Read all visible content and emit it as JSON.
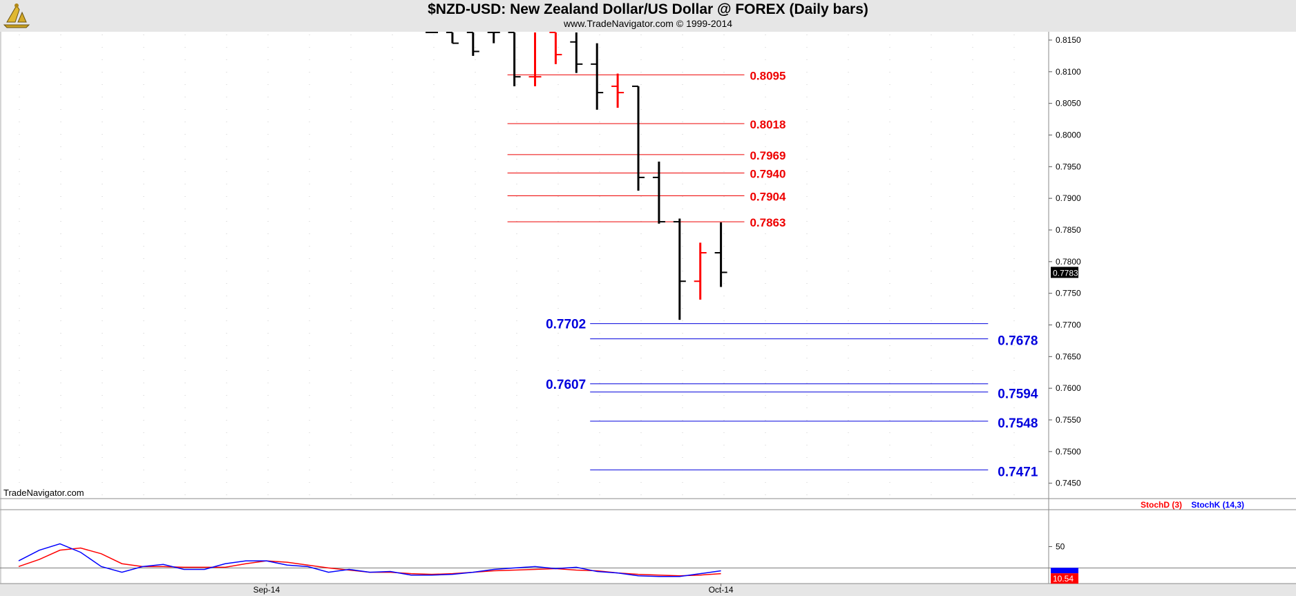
{
  "header": {
    "title": "$NZD-USD:  New Zealand Dollar/US Dollar @ FOREX  (Daily bars)",
    "subtitle": "www.TradeNavigator.com © 1999-2014",
    "watermark": "TradeNavigator.com"
  },
  "colors": {
    "up_bar": "#000000",
    "down_bar": "#ff0000",
    "resistance": "#ee0000",
    "support": "#0000dd",
    "stoch_d": "#ff0000",
    "stoch_k": "#0000ff"
  },
  "chart_data": [
    {
      "type": "ohlc",
      "ylim": [
        0.743,
        0.8162
      ],
      "y_ticks": [
        "0.8150",
        "0.8100",
        "0.8050",
        "0.8000",
        "0.7950",
        "0.7900",
        "0.7850",
        "0.7800",
        "0.7750",
        "0.7700",
        "0.7650",
        "0.7600",
        "0.7550",
        "0.7500",
        "0.7450"
      ],
      "last_price": "0.7783",
      "grid": true,
      "bars": [
        {
          "x": 20,
          "o": 0.8162,
          "h": 0.8162,
          "l": 0.8162,
          "c": 0.8162,
          "color": "black"
        },
        {
          "x": 21,
          "o": 0.8162,
          "h": 0.8162,
          "l": 0.8145,
          "c": 0.8145,
          "color": "black"
        },
        {
          "x": 22,
          "o": 0.8162,
          "h": 0.8162,
          "l": 0.8125,
          "c": 0.8132,
          "color": "black"
        },
        {
          "x": 23,
          "o": 0.8162,
          "h": 0.8162,
          "l": 0.8145,
          "c": 0.8162,
          "color": "black"
        },
        {
          "x": 24,
          "o": 0.8162,
          "h": 0.8162,
          "l": 0.8077,
          "c": 0.8092,
          "color": "black"
        },
        {
          "x": 25,
          "o": 0.8092,
          "h": 0.8162,
          "l": 0.8077,
          "c": 0.8092,
          "color": "red"
        },
        {
          "x": 26,
          "o": 0.8162,
          "h": 0.8162,
          "l": 0.8112,
          "c": 0.8127,
          "color": "red"
        },
        {
          "x": 27,
          "o": 0.8147,
          "h": 0.8162,
          "l": 0.8098,
          "c": 0.8112,
          "color": "black"
        },
        {
          "x": 28,
          "o": 0.8112,
          "h": 0.8145,
          "l": 0.804,
          "c": 0.8067,
          "color": "black"
        },
        {
          "x": 29,
          "o": 0.8077,
          "h": 0.8097,
          "l": 0.8043,
          "c": 0.8067,
          "color": "red"
        },
        {
          "x": 30,
          "o": 0.8077,
          "h": 0.8077,
          "l": 0.7912,
          "c": 0.7933,
          "color": "black"
        },
        {
          "x": 31,
          "o": 0.7933,
          "h": 0.7958,
          "l": 0.786,
          "c": 0.7863,
          "color": "black"
        },
        {
          "x": 32,
          "o": 0.7863,
          "h": 0.7868,
          "l": 0.7708,
          "c": 0.7769,
          "color": "black"
        },
        {
          "x": 33,
          "o": 0.7769,
          "h": 0.783,
          "l": 0.774,
          "c": 0.7814,
          "color": "red"
        },
        {
          "x": 34,
          "o": 0.7814,
          "h": 0.7862,
          "l": 0.776,
          "c": 0.7783,
          "color": "black"
        }
      ],
      "levels": [
        {
          "value": 0.8095,
          "label": "0.8095",
          "color": "red",
          "from_x": 24,
          "to_x": 35.2,
          "label_side": "right"
        },
        {
          "value": 0.8018,
          "label": "0.8018",
          "color": "red",
          "from_x": 24,
          "to_x": 35.2,
          "label_side": "right"
        },
        {
          "value": 0.7969,
          "label": "0.7969",
          "color": "red",
          "from_x": 24,
          "to_x": 35.2,
          "label_side": "right"
        },
        {
          "value": 0.794,
          "label": "0.7940",
          "color": "red",
          "from_x": 24,
          "to_x": 35.2,
          "label_side": "right"
        },
        {
          "value": 0.7904,
          "label": "0.7904",
          "color": "red",
          "from_x": 24,
          "to_x": 35.2,
          "label_side": "right"
        },
        {
          "value": 0.7863,
          "label": "0.7863",
          "color": "red",
          "from_x": 24,
          "to_x": 35.2,
          "label_side": "right"
        },
        {
          "value": 0.7702,
          "label": "0.7702",
          "color": "blue",
          "from_x": 28,
          "to_x": 47,
          "label_side": "left"
        },
        {
          "value": 0.7678,
          "label": "0.7678",
          "color": "blue",
          "from_x": 28,
          "to_x": 47,
          "label_side": "right"
        },
        {
          "value": 0.7607,
          "label": "0.7607",
          "color": "blue",
          "from_x": 28,
          "to_x": 47,
          "label_side": "left"
        },
        {
          "value": 0.7594,
          "label": "0.7594",
          "color": "blue",
          "from_x": 28,
          "to_x": 47,
          "label_side": "right"
        },
        {
          "value": 0.7548,
          "label": "0.7548",
          "color": "blue",
          "from_x": 28,
          "to_x": 47,
          "label_side": "right"
        },
        {
          "value": 0.7471,
          "label": "0.7471",
          "color": "blue",
          "from_x": 28,
          "to_x": 47,
          "label_side": "right"
        }
      ]
    },
    {
      "type": "line",
      "legend": [
        "StochD (3)",
        "StochK (14,3)"
      ],
      "ylim": [
        0,
        100
      ],
      "y_ticks": [
        "50"
      ],
      "reference_line": 20,
      "last_value": "10.54",
      "x_tick_labels": [
        {
          "x": 12,
          "label": "Sep-14"
        },
        {
          "x": 34,
          "label": "Oct-14"
        }
      ],
      "series": [
        {
          "name": "StochD (3)",
          "color": "red",
          "values": [
            22,
            32,
            45,
            48,
            40,
            26,
            22,
            22,
            21,
            21,
            21,
            26,
            30,
            28,
            24,
            20,
            17,
            14,
            14,
            12,
            11,
            12,
            14,
            16,
            17,
            18,
            19,
            17,
            16,
            13,
            11,
            10,
            9,
            10,
            12
          ]
        },
        {
          "name": "StochK (14,3)",
          "color": "blue",
          "values": [
            30,
            45,
            54,
            42,
            22,
            14,
            22,
            25,
            18,
            18,
            26,
            30,
            30,
            24,
            22,
            14,
            18,
            14,
            15,
            10,
            10,
            11,
            14,
            18,
            20,
            22,
            19,
            21,
            15,
            13,
            9,
            8,
            8,
            12,
            16
          ]
        }
      ]
    }
  ]
}
